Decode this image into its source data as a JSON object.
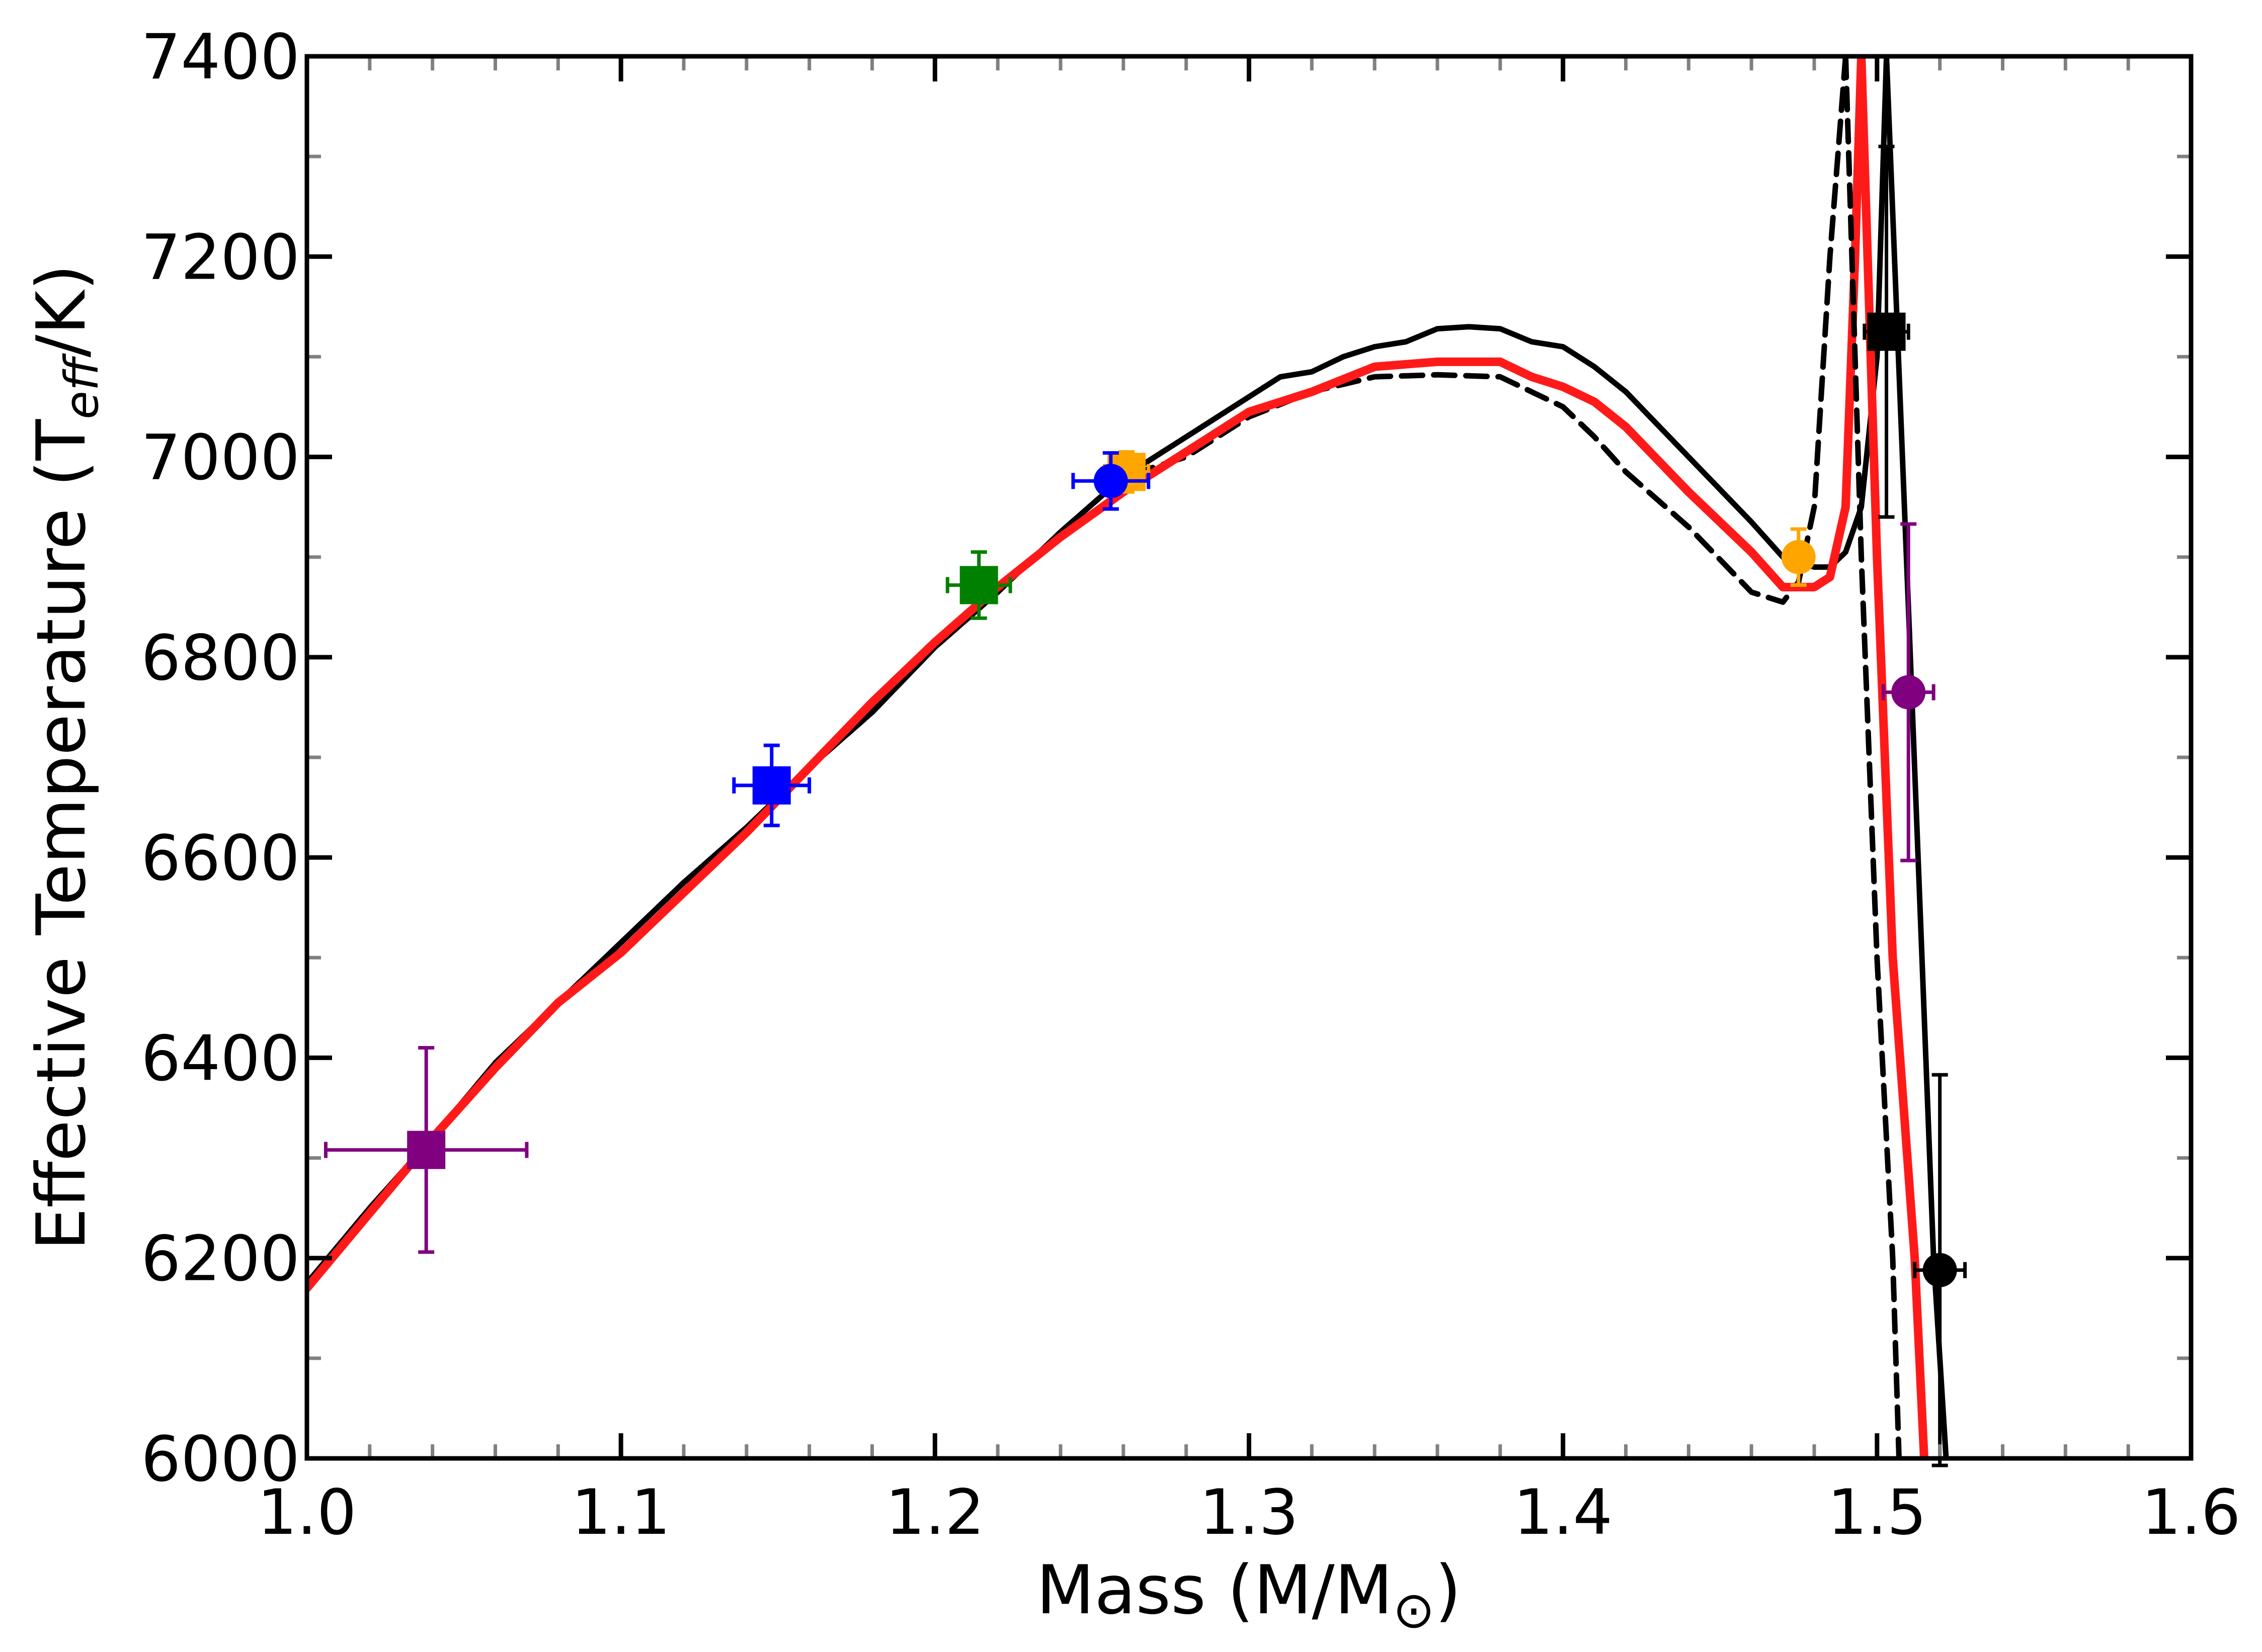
{
  "chart_data": {
    "type": "line",
    "xlabel": "Mass (M/M",
    "xlabel_symbol": "⊙",
    "xlabel_close": ")",
    "ylabel_main": "Effective Temperature (T",
    "ylabel_sub": "eff",
    "ylabel_close": "/K)",
    "xlim": [
      1.0,
      1.6
    ],
    "ylim": [
      6000,
      7400
    ],
    "x_ticks": [
      1.0,
      1.1,
      1.2,
      1.3,
      1.4,
      1.5,
      1.6
    ],
    "x_tick_labels": [
      "1.0",
      "1.1",
      "1.2",
      "1.3",
      "1.4",
      "1.5",
      "1.6"
    ],
    "y_ticks": [
      6000,
      6200,
      6400,
      6600,
      6800,
      7000,
      7200,
      7400
    ],
    "y_tick_labels": [
      "6000",
      "6200",
      "6400",
      "6600",
      "6800",
      "7000",
      "7200",
      "7400"
    ],
    "grid": false,
    "series": [
      {
        "name": "model-solid-black",
        "color": "#000000",
        "dash": "solid",
        "points": [
          [
            1.0,
            6175
          ],
          [
            1.02,
            6250
          ],
          [
            1.04,
            6320
          ],
          [
            1.06,
            6395
          ],
          [
            1.08,
            6455
          ],
          [
            1.1,
            6515
          ],
          [
            1.12,
            6575
          ],
          [
            1.14,
            6630
          ],
          [
            1.16,
            6690
          ],
          [
            1.18,
            6745
          ],
          [
            1.2,
            6810
          ],
          [
            1.22,
            6865
          ],
          [
            1.24,
            6925
          ],
          [
            1.26,
            6980
          ],
          [
            1.28,
            7020
          ],
          [
            1.29,
            7040
          ],
          [
            1.3,
            7060
          ],
          [
            1.31,
            7080
          ],
          [
            1.32,
            7085
          ],
          [
            1.33,
            7100
          ],
          [
            1.34,
            7110
          ],
          [
            1.35,
            7115
          ],
          [
            1.36,
            7128
          ],
          [
            1.37,
            7130
          ],
          [
            1.38,
            7128
          ],
          [
            1.39,
            7115
          ],
          [
            1.4,
            7110
          ],
          [
            1.41,
            7090
          ],
          [
            1.42,
            7065
          ],
          [
            1.44,
            7000
          ],
          [
            1.46,
            6935
          ],
          [
            1.47,
            6900
          ],
          [
            1.48,
            6890
          ],
          [
            1.485,
            6890
          ],
          [
            1.49,
            6905
          ],
          [
            1.495,
            6950
          ],
          [
            1.5,
            7100
          ],
          [
            1.503,
            7400
          ]
        ]
      },
      {
        "name": "model-dashed-black",
        "color": "#000000",
        "dash": "dashed",
        "points": [
          [
            1.0,
            6175
          ],
          [
            1.02,
            6250
          ],
          [
            1.04,
            6320
          ],
          [
            1.06,
            6395
          ],
          [
            1.08,
            6455
          ],
          [
            1.1,
            6515
          ],
          [
            1.12,
            6575
          ],
          [
            1.14,
            6630
          ],
          [
            1.16,
            6690
          ],
          [
            1.18,
            6745
          ],
          [
            1.2,
            6810
          ],
          [
            1.22,
            6865
          ],
          [
            1.24,
            6925
          ],
          [
            1.26,
            6980
          ],
          [
            1.28,
            7000
          ],
          [
            1.3,
            7040
          ],
          [
            1.32,
            7065
          ],
          [
            1.34,
            7080
          ],
          [
            1.36,
            7082
          ],
          [
            1.38,
            7080
          ],
          [
            1.39,
            7065
          ],
          [
            1.4,
            7050
          ],
          [
            1.41,
            7020
          ],
          [
            1.42,
            6985
          ],
          [
            1.44,
            6930
          ],
          [
            1.46,
            6865
          ],
          [
            1.47,
            6855
          ],
          [
            1.475,
            6875
          ],
          [
            1.48,
            6950
          ],
          [
            1.485,
            7200
          ],
          [
            1.49,
            7400
          ]
        ]
      },
      {
        "name": "model-red",
        "color": "#ff1a1a",
        "dash": "solid",
        "points": [
          [
            1.0,
            6170
          ],
          [
            1.02,
            6245
          ],
          [
            1.04,
            6320
          ],
          [
            1.06,
            6390
          ],
          [
            1.08,
            6455
          ],
          [
            1.1,
            6505
          ],
          [
            1.12,
            6565
          ],
          [
            1.14,
            6625
          ],
          [
            1.16,
            6690
          ],
          [
            1.18,
            6755
          ],
          [
            1.2,
            6815
          ],
          [
            1.22,
            6870
          ],
          [
            1.24,
            6920
          ],
          [
            1.26,
            6965
          ],
          [
            1.28,
            7005
          ],
          [
            1.3,
            7045
          ],
          [
            1.32,
            7065
          ],
          [
            1.34,
            7090
          ],
          [
            1.36,
            7095
          ],
          [
            1.38,
            7095
          ],
          [
            1.39,
            7080
          ],
          [
            1.4,
            7070
          ],
          [
            1.41,
            7055
          ],
          [
            1.42,
            7030
          ],
          [
            1.44,
            6965
          ],
          [
            1.46,
            6905
          ],
          [
            1.47,
            6870
          ],
          [
            1.48,
            6870
          ],
          [
            1.485,
            6880
          ],
          [
            1.49,
            6950
          ],
          [
            1.493,
            7200
          ],
          [
            1.495,
            7400
          ]
        ]
      },
      {
        "name": "descending-branch-solid-black",
        "color": "#000000",
        "dash": "solid",
        "points": [
          [
            1.503,
            7400
          ],
          [
            1.51,
            6850
          ],
          [
            1.518,
            6200
          ],
          [
            1.522,
            6000
          ]
        ]
      },
      {
        "name": "descending-branch-dashed-black",
        "color": "#000000",
        "dash": "dashed",
        "points": [
          [
            1.49,
            7400
          ],
          [
            1.495,
            6900
          ],
          [
            1.5,
            6500
          ],
          [
            1.505,
            6200
          ],
          [
            1.507,
            6000
          ]
        ]
      },
      {
        "name": "descending-branch-red",
        "color": "#ff1a1a",
        "dash": "solid",
        "points": [
          [
            1.495,
            7400
          ],
          [
            1.5,
            6900
          ],
          [
            1.505,
            6500
          ],
          [
            1.512,
            6200
          ],
          [
            1.515,
            6000
          ]
        ]
      }
    ],
    "markers": [
      {
        "name": "purple-square",
        "shape": "square",
        "color": "#800080",
        "x": 1.038,
        "y": 6308,
        "xerr": 0.032,
        "yerr": 102
      },
      {
        "name": "blue-square",
        "shape": "square",
        "color": "#0000ff",
        "x": 1.148,
        "y": 6672,
        "xerr": 0.012,
        "yerr": 40
      },
      {
        "name": "green-square",
        "shape": "square",
        "color": "#008000",
        "x": 1.214,
        "y": 6872,
        "xerr": 0.01,
        "yerr": 33
      },
      {
        "name": "orange-square",
        "shape": "square",
        "color": "#ffa500",
        "x": 1.261,
        "y": 6985,
        "xerr": 0.007,
        "yerr": 20
      },
      {
        "name": "blue-circle",
        "shape": "circle",
        "color": "#0000ff",
        "x": 1.256,
        "y": 6976,
        "xerr": 0.012,
        "yerr": 28
      },
      {
        "name": "orange-circle",
        "shape": "circle",
        "color": "#ffa500",
        "x": 1.475,
        "y": 6900,
        "xerr": 0.003,
        "yerr": 28
      },
      {
        "name": "black-square",
        "shape": "square",
        "color": "#000000",
        "x": 1.503,
        "y": 7125,
        "xerr": 0.007,
        "yerr": 185
      },
      {
        "name": "purple-circle",
        "shape": "circle",
        "color": "#800080",
        "x": 1.51,
        "y": 6765,
        "xerr": 0.008,
        "yerr": 168
      },
      {
        "name": "black-circle",
        "shape": "circle",
        "color": "#000000",
        "x": 1.52,
        "y": 6188,
        "xerr": 0.008,
        "yerr": 195
      }
    ]
  }
}
